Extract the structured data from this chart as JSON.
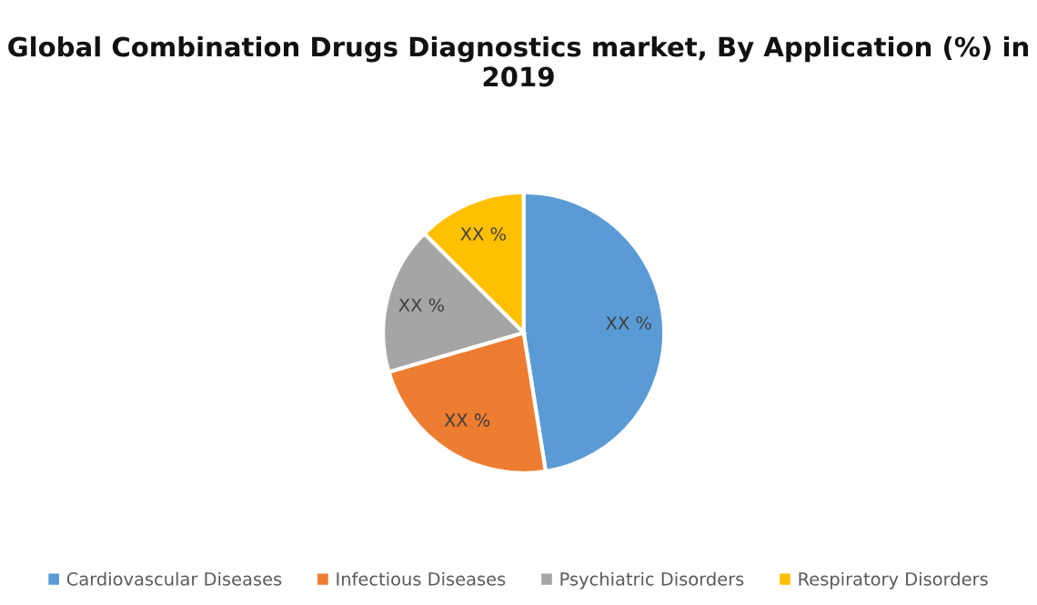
{
  "chart_data": {
    "type": "pie",
    "title": "Global Combination Drugs Diagnostics market, By Application (%) in 2019",
    "categories": [
      "Cardiovascular Diseases",
      "Infectious Diseases",
      "Psychiatric Disorders",
      "Respiratory Disorders"
    ],
    "values": [
      47.5,
      23,
      17,
      12.5
    ],
    "colors": [
      "#5b9bd5",
      "#ed7d31",
      "#a5a5a5",
      "#ffc000"
    ],
    "value_labels": [
      "XX %",
      "XX %",
      "XX %",
      "XX %"
    ],
    "legend": "bottom"
  }
}
